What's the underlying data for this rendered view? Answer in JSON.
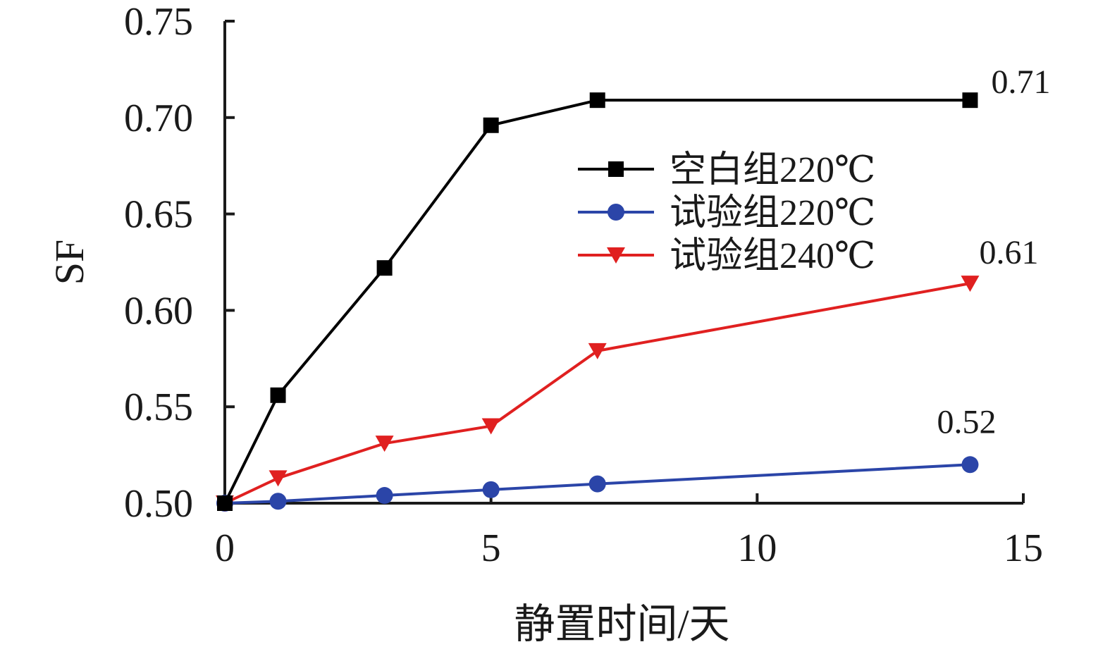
{
  "chart_data": {
    "type": "line",
    "title": "",
    "xlabel": "静置时间/天",
    "ylabel": "SF",
    "xlim": [
      0,
      15
    ],
    "ylim": [
      0.5,
      0.75
    ],
    "x_ticks": [
      0,
      5,
      10,
      15
    ],
    "x_tick_labels": [
      "0",
      "5",
      "10",
      "15"
    ],
    "y_ticks": [
      0.5,
      0.55,
      0.6,
      0.65,
      0.7,
      0.75
    ],
    "y_tick_labels": [
      "0.50",
      "0.55",
      "0.60",
      "0.65",
      "0.70",
      "0.75"
    ],
    "grid": false,
    "legend_position": "upper-middle",
    "series": [
      {
        "name": "空白组220℃",
        "color": "#000000",
        "marker": "square",
        "x": [
          0,
          1,
          3,
          5,
          7,
          14
        ],
        "values": [
          0.5,
          0.556,
          0.622,
          0.696,
          0.709,
          0.709
        ],
        "end_label": "0.71"
      },
      {
        "name": "试验组220℃",
        "color": "#2b45a8",
        "marker": "circle",
        "x": [
          0,
          1,
          3,
          5,
          7,
          14
        ],
        "values": [
          0.5,
          0.501,
          0.504,
          0.507,
          0.51,
          0.52
        ],
        "end_label": "0.52"
      },
      {
        "name": "试验组240℃",
        "color": "#e02020",
        "marker": "triangle-down",
        "x": [
          0,
          1,
          3,
          5,
          7,
          14
        ],
        "values": [
          0.5,
          0.513,
          0.531,
          0.54,
          0.579,
          0.614
        ],
        "end_label": "0.61"
      }
    ]
  }
}
